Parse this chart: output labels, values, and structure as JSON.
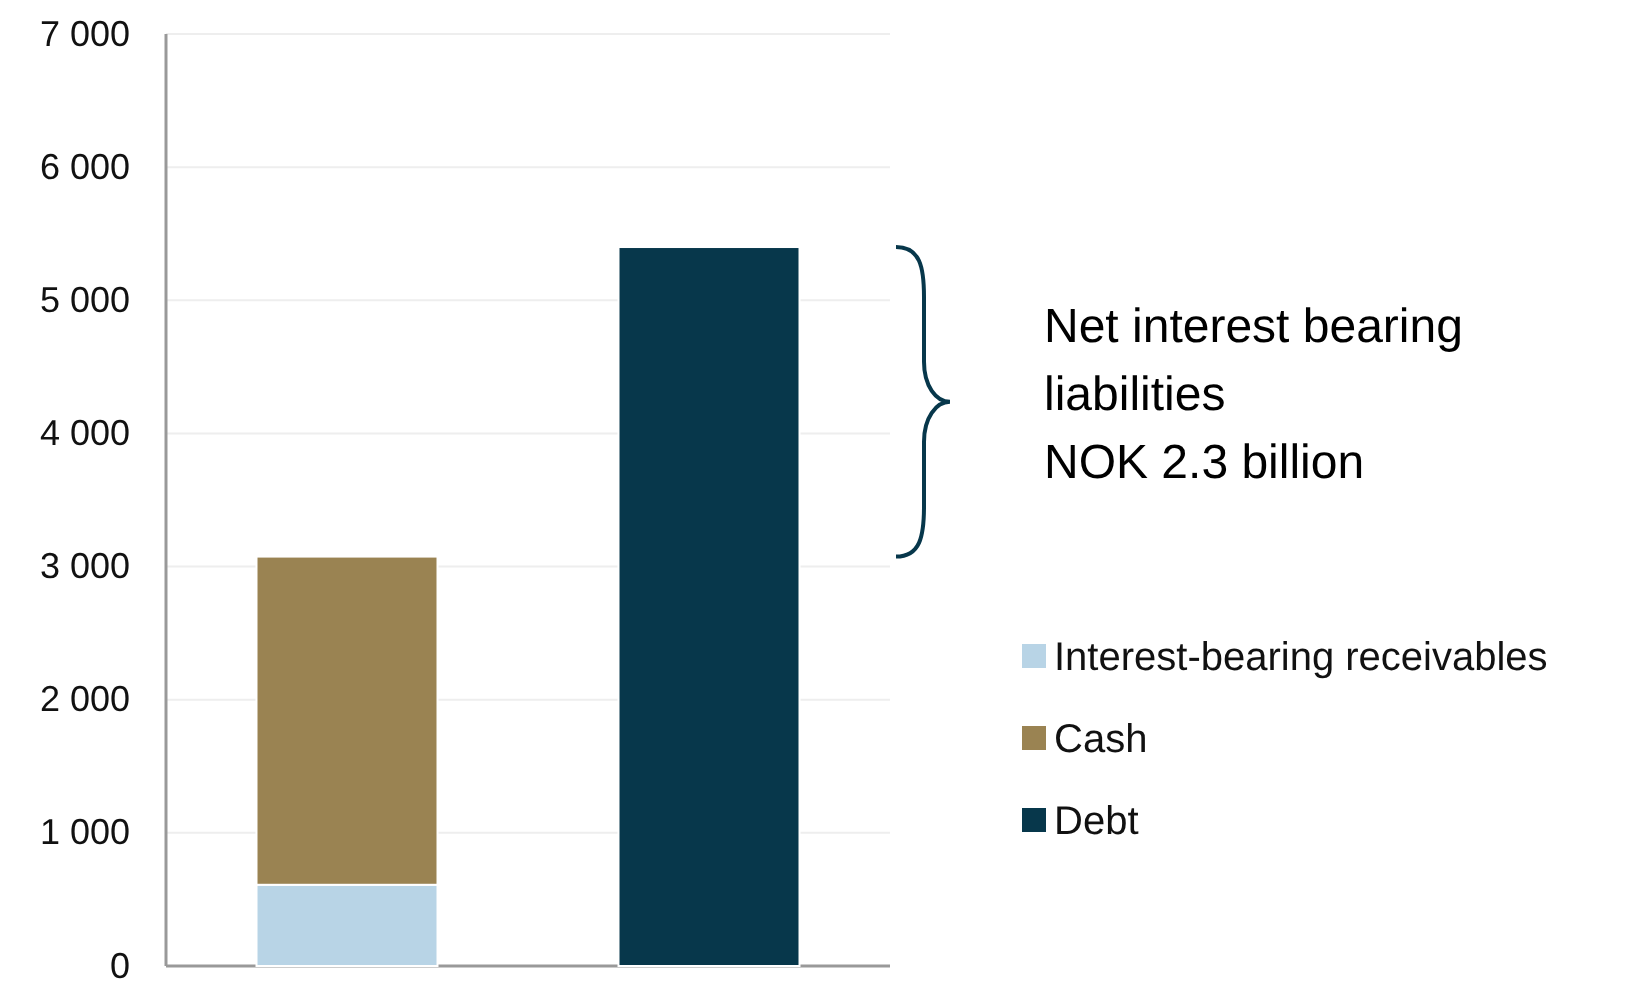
{
  "chart_data": {
    "type": "bar",
    "stacked": true,
    "categories": [
      null,
      null
    ],
    "series": [
      {
        "name": "Interest-bearing receivables",
        "color": "#b8d4e6",
        "values": [
          610,
          null
        ]
      },
      {
        "name": "Cash",
        "color": "#9a8352",
        "values": [
          2465,
          null
        ]
      },
      {
        "name": "Debt",
        "color": "#07374b",
        "values": [
          null,
          5400
        ]
      }
    ],
    "ylim": [
      0,
      7000
    ],
    "yticks": [
      {
        "value": 0,
        "label": "0"
      },
      {
        "value": 1000,
        "label": "1 000"
      },
      {
        "value": 2000,
        "label": "2 000"
      },
      {
        "value": 3000,
        "label": "3 000"
      },
      {
        "value": 4000,
        "label": "4 000"
      },
      {
        "value": 5000,
        "label": "5 000"
      },
      {
        "value": 6000,
        "label": "6 000"
      },
      {
        "value": 7000,
        "label": "7 000"
      }
    ],
    "grid": "y",
    "legend": "right",
    "annotations": [
      "Net interest bearing liabilities NOK 2.3 billion"
    ]
  }
}
